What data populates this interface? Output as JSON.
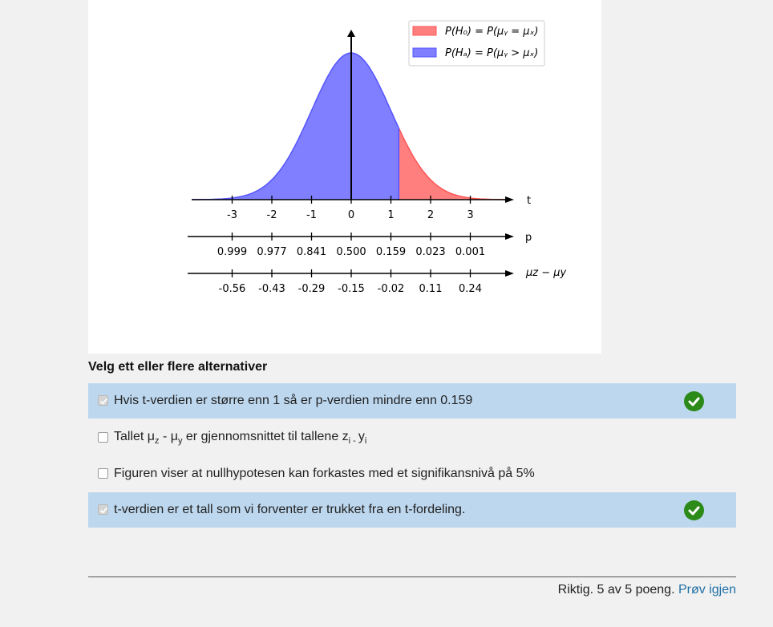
{
  "figure": {
    "legend": {
      "h0": "P(H₀) = P(μᵧ = μₓ)",
      "ha": "P(Hₐ) = P(μᵧ > μₓ)"
    },
    "axis_t": {
      "label": "t",
      "ticks": [
        "-3",
        "-2",
        "-1",
        "0",
        "1",
        "2",
        "3"
      ]
    },
    "axis_p": {
      "label": "p",
      "ticks": [
        "0.999",
        "0.977",
        "0.841",
        "0.500",
        "0.159",
        "0.023",
        "0.001"
      ]
    },
    "axis_diff": {
      "label": "μz − μy",
      "ticks": [
        "-0.56",
        "-0.43",
        "-0.29",
        "-0.15",
        "-0.02",
        "0.11",
        "0.24"
      ]
    },
    "colors": {
      "h0_fill": "#ff7f7f",
      "ha_fill": "#7f7fff",
      "h0_edge": "#ff5555",
      "ha_edge": "#5555ff"
    },
    "t_split": 1.2
  },
  "question": {
    "prompt": "Velg ett eller flere alternativer",
    "options": [
      {
        "text": "Hvis t-verdien er større enn 1 så er p-verdien mindre enn 0.159",
        "selected": true,
        "correct": true
      },
      {
        "text_a": "Tallet μ",
        "sub_a": "z",
        "text_b": " - μ",
        "sub_b": "y",
        "text_c": " er gjennomsnittet til tallene z",
        "sub_c": "i - ",
        "text_d": "y",
        "sub_d": "i",
        "selected": false
      },
      {
        "text": "Figuren viser at nullhypotesen kan forkastes med et signifikansnivå på 5%",
        "selected": false
      },
      {
        "text": "t-verdien er et tall som vi forventer er trukket fra en t-fordeling.",
        "selected": true,
        "correct": true
      }
    ]
  },
  "result": {
    "text": "Riktig. 5 av 5 poeng.",
    "retry": "Prøv igjen"
  }
}
